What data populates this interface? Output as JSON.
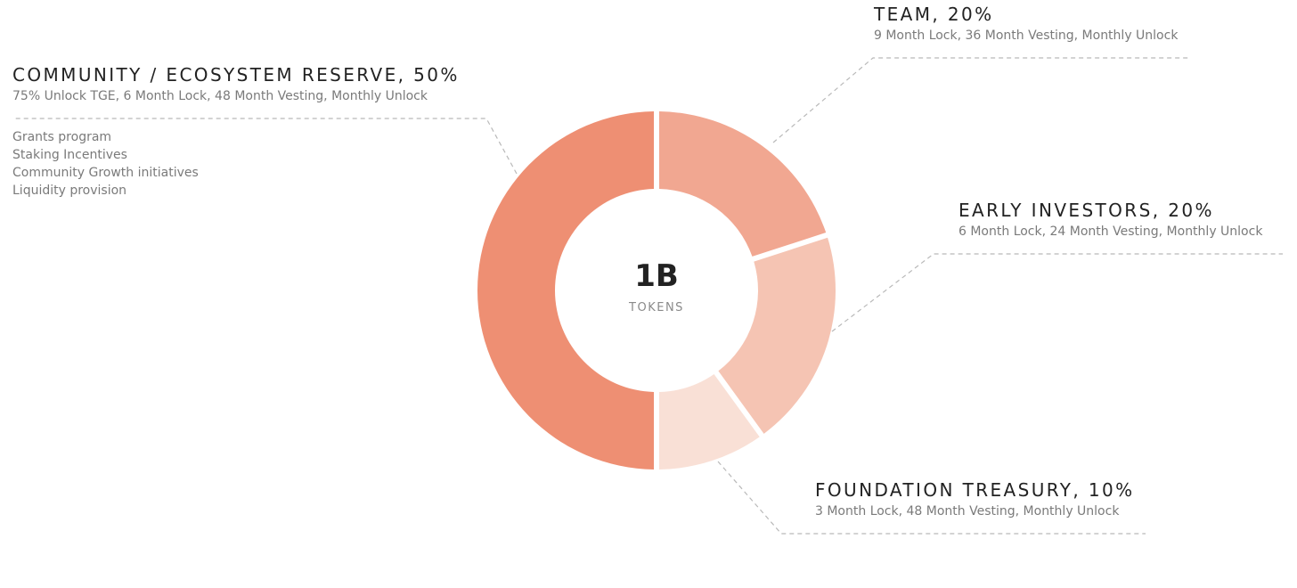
{
  "chart_data": {
    "type": "pie",
    "center": {
      "value": "1B",
      "label": "TOKENS"
    },
    "slices": [
      {
        "title": "TEAM, 20%",
        "value": 20,
        "color": "#f1a791",
        "details": "9 Month Lock, 36 Month Vesting, Monthly Unlock",
        "bullets": []
      },
      {
        "title": "EARLY INVESTORS, 20%",
        "value": 20,
        "color": "#f5c4b3",
        "details": "6 Month Lock, 24 Month Vesting, Monthly Unlock",
        "bullets": []
      },
      {
        "title": "FOUNDATION TREASURY, 10%",
        "value": 10,
        "color": "#f9e0d6",
        "details": "3 Month Lock, 48 Month Vesting, Monthly Unlock",
        "bullets": []
      },
      {
        "title": "COMMUNITY / ECOSYSTEM RESERVE, 50%",
        "value": 50,
        "color": "#ee8f73",
        "details": "75% Unlock TGE, 6 Month Lock, 48 Month Vesting, Monthly Unlock",
        "bullets": [
          "Grants program",
          "Staking Incentives",
          "Community Growth initiatives",
          "Liquidity provision"
        ]
      }
    ]
  }
}
